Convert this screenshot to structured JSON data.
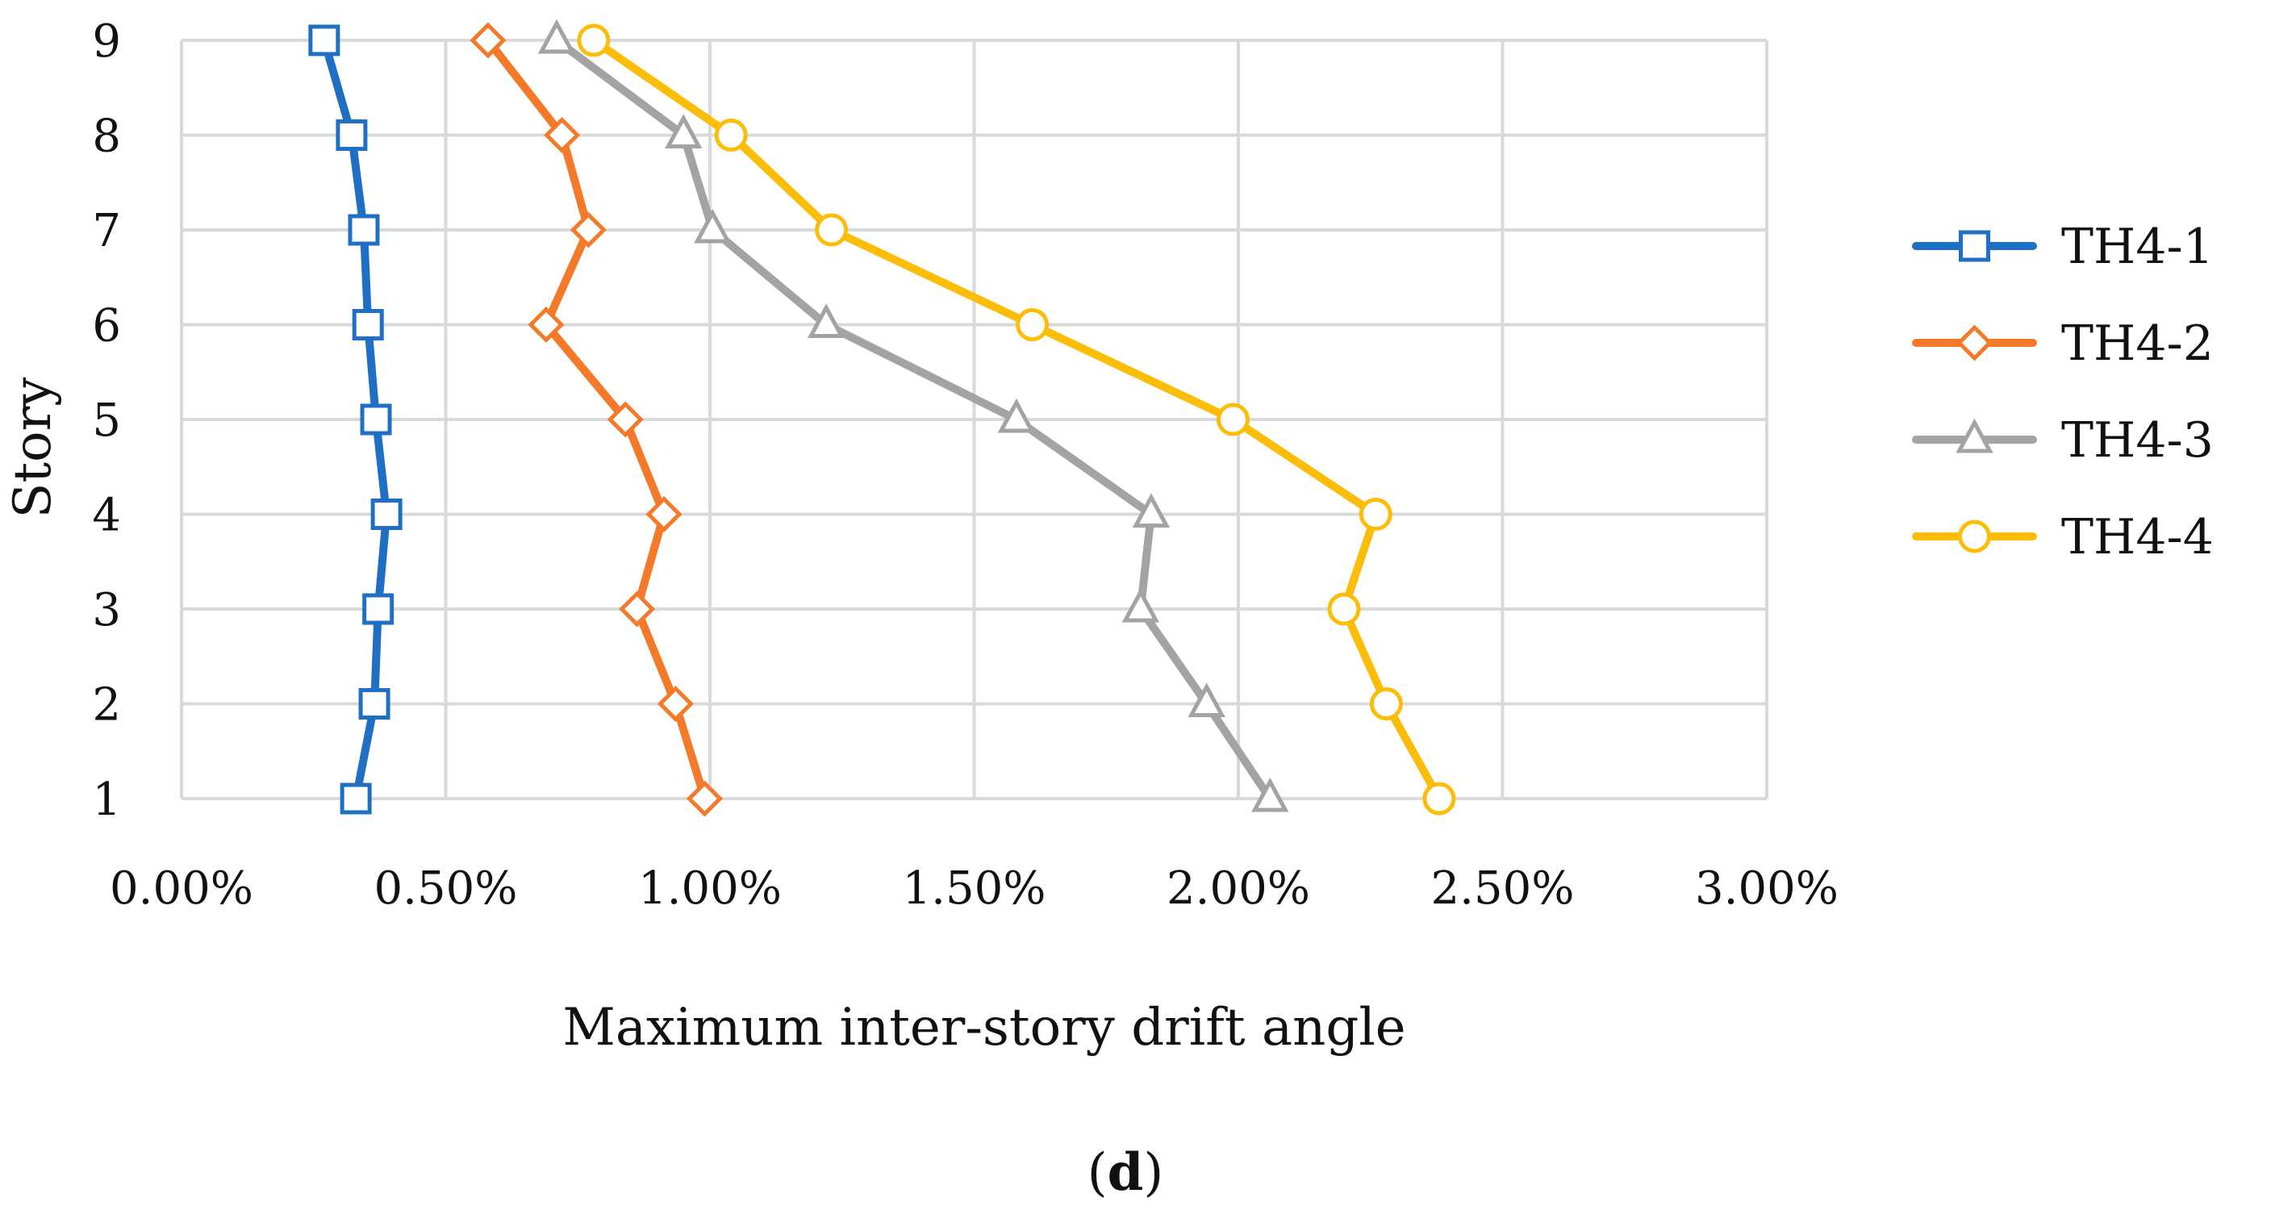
{
  "chart_data": {
    "type": "line",
    "title": "",
    "xlabel": "Maximum inter-story drift angle",
    "ylabel": "Story",
    "xlim": [
      0,
      0.03
    ],
    "ylim": [
      1,
      9
    ],
    "x_ticks": [
      0,
      0.005,
      0.01,
      0.015,
      0.02,
      0.025,
      0.03
    ],
    "x_tick_labels": [
      "0.00%",
      "0.50%",
      "1.00%",
      "1.50%",
      "2.00%",
      "2.50%",
      "3.00%"
    ],
    "y_ticks": [
      1,
      2,
      3,
      4,
      5,
      6,
      7,
      8,
      9
    ],
    "y_tick_labels": [
      "1",
      "2",
      "3",
      "4",
      "5",
      "6",
      "7",
      "8",
      "9"
    ],
    "grid": true,
    "legend_position": "right",
    "stories": [
      1,
      2,
      3,
      4,
      5,
      6,
      7,
      8,
      9
    ],
    "series": [
      {
        "name": "TH4-1",
        "color": "#1f6fc5",
        "marker": "square",
        "values": [
          0.0033,
          0.00365,
          0.00372,
          0.00388,
          0.00368,
          0.00353,
          0.00345,
          0.00322,
          0.0027
        ]
      },
      {
        "name": "TH4-2",
        "color": "#f47a2a",
        "marker": "diamond",
        "values": [
          0.0099,
          0.00935,
          0.00862,
          0.00913,
          0.0084,
          0.0069,
          0.0077,
          0.0072,
          0.0058
        ]
      },
      {
        "name": "TH4-3",
        "color": "#a3a3a3",
        "marker": "triangle",
        "values": [
          0.0206,
          0.0194,
          0.01815,
          0.01835,
          0.0158,
          0.0122,
          0.01005,
          0.0095,
          0.0071
        ]
      },
      {
        "name": "TH4-4",
        "color": "#fbbd08",
        "marker": "circle",
        "values": [
          0.0238,
          0.0228,
          0.022,
          0.0226,
          0.0199,
          0.0161,
          0.0123,
          0.0104,
          0.0078
        ]
      }
    ]
  },
  "caption": {
    "open": "(",
    "letter": "d",
    "close": ")"
  }
}
